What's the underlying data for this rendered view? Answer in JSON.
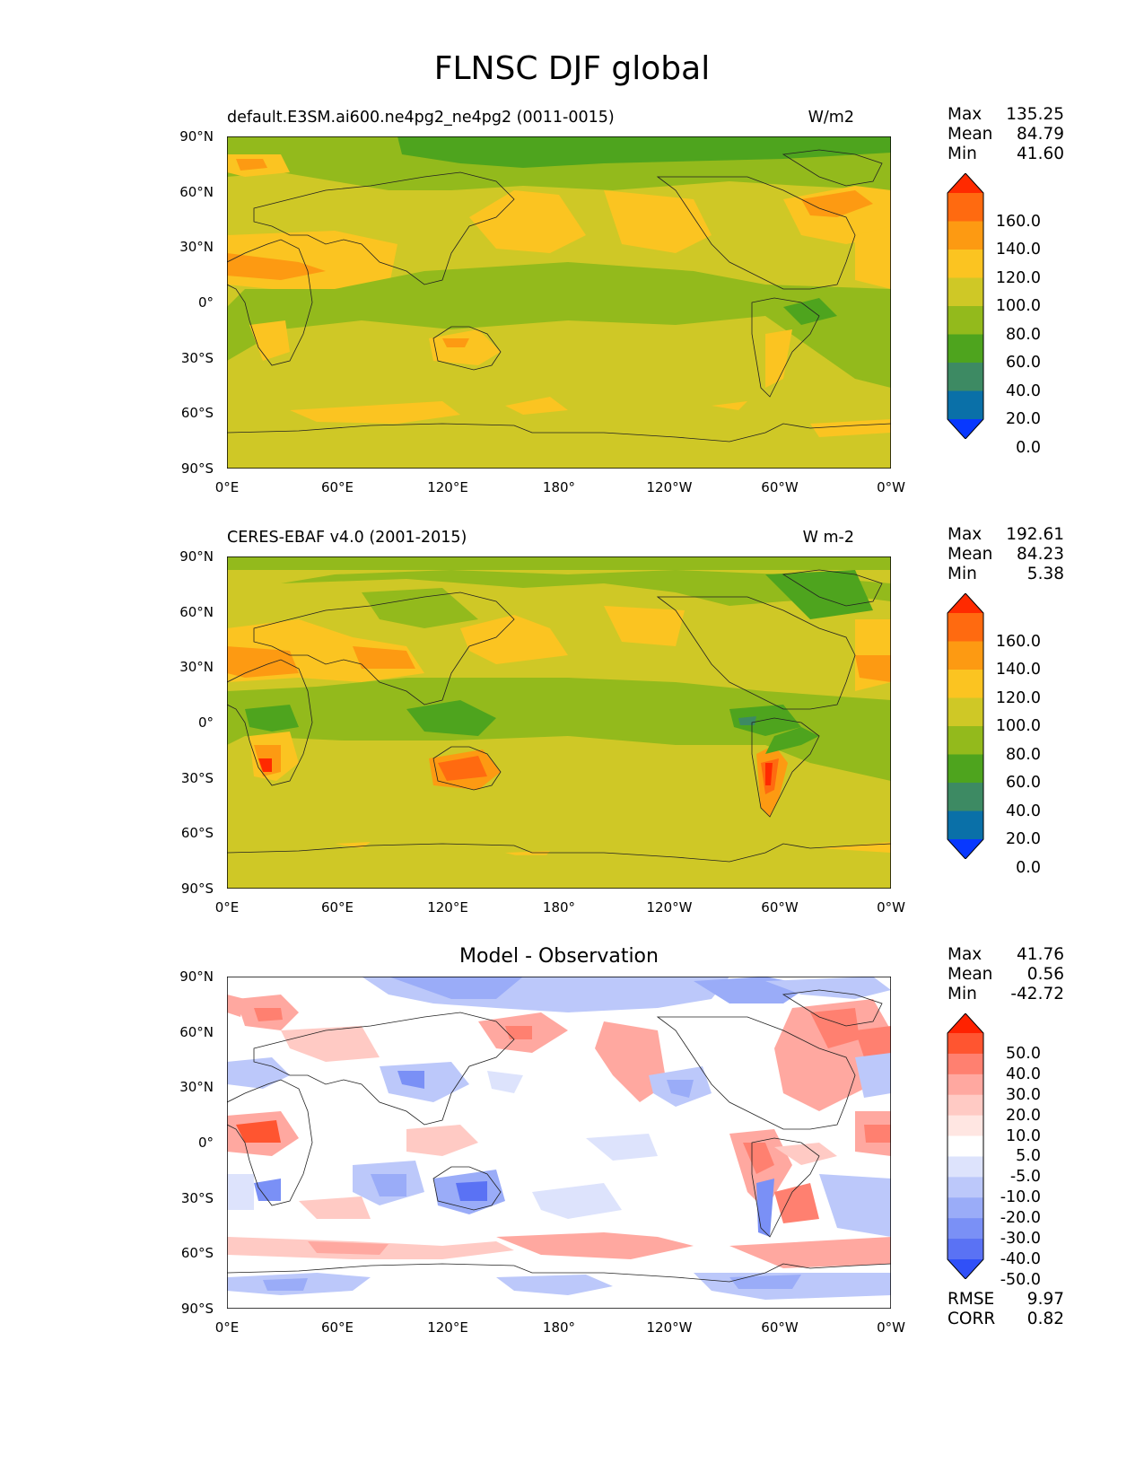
{
  "figure_title": "FLNSC DJF global",
  "panels": [
    {
      "subtitle_left": "default.E3SM.ai600.ne4pg2_ne4pg2 (0011-0015)",
      "subtitle_right": "W/m2",
      "stats": [
        {
          "label": "Max",
          "value": "135.25"
        },
        {
          "label": "Mean",
          "value": "84.79"
        },
        {
          "label": "Min",
          "value": "41.60"
        }
      ],
      "colorbar": {
        "labels": [
          "160.0",
          "140.0",
          "120.0",
          "100.0",
          "80.0",
          "60.0",
          "40.0",
          "20.0",
          "0.0"
        ],
        "colors": [
          "#ff2a00",
          "#ff6a10",
          "#fd9a12",
          "#fbc421",
          "#cfc826",
          "#93ba1c",
          "#4ea41e",
          "#3d8a63",
          "#0a70a8",
          "#0838ff"
        ]
      }
    },
    {
      "subtitle_left": "CERES-EBAF v4.0 (2001-2015)",
      "subtitle_right": "W m-2",
      "stats": [
        {
          "label": "Max",
          "value": "192.61"
        },
        {
          "label": "Mean",
          "value": "84.23"
        },
        {
          "label": "Min",
          "value": "5.38"
        }
      ],
      "colorbar": {
        "labels": [
          "160.0",
          "140.0",
          "120.0",
          "100.0",
          "80.0",
          "60.0",
          "40.0",
          "20.0",
          "0.0"
        ],
        "colors": [
          "#ff2a00",
          "#ff6a10",
          "#fd9a12",
          "#fbc421",
          "#cfc826",
          "#93ba1c",
          "#4ea41e",
          "#3d8a63",
          "#0a70a8",
          "#0838ff"
        ]
      }
    },
    {
      "subtitle_center": "Model - Observation",
      "stats": [
        {
          "label": "Max",
          "value": "41.76"
        },
        {
          "label": "Mean",
          "value": "0.56"
        },
        {
          "label": "Min",
          "value": "-42.72"
        }
      ],
      "extra_stats": [
        {
          "label": "RMSE",
          "value": "9.97"
        },
        {
          "label": "CORR",
          "value": "0.82"
        }
      ],
      "colorbar": {
        "labels": [
          "50.0",
          "40.0",
          "30.0",
          "20.0",
          "10.0",
          "5.0",
          "-5.0",
          "-10.0",
          "-20.0",
          "-30.0",
          "-40.0",
          "-50.0"
        ],
        "colors": [
          "#ff2200",
          "#ff5530",
          "#ff8070",
          "#ffa8a0",
          "#ffcac4",
          "#ffe6e2",
          "#ffffff",
          "#dde3fc",
          "#bcc8fa",
          "#9aacf8",
          "#7a90f6",
          "#5a72f4",
          "#3050f8"
        ]
      }
    }
  ],
  "lat_ticks": [
    "90°N",
    "60°N",
    "30°N",
    "0°",
    "30°S",
    "60°S",
    "90°S"
  ],
  "lon_ticks": [
    "0°E",
    "60°E",
    "120°E",
    "180°",
    "120°W",
    "60°W",
    "0°W"
  ]
}
